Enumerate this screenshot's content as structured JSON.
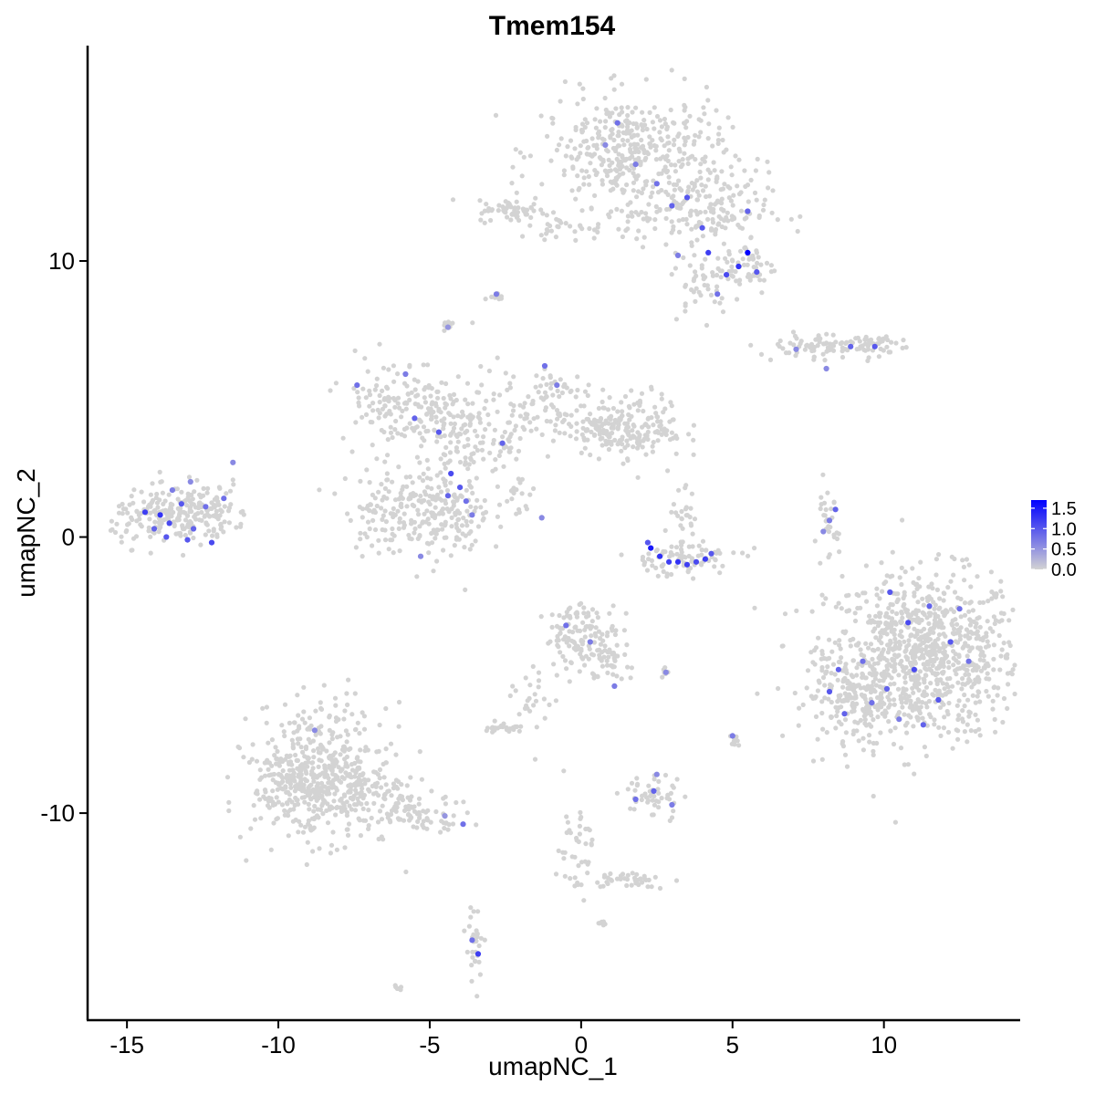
{
  "chart_data": {
    "type": "scatter",
    "title": "Tmem154",
    "xlabel": "umapNC_1",
    "ylabel": "umapNC_2",
    "xlim": [
      -16.3,
      14.5
    ],
    "ylim": [
      -17.5,
      17.8
    ],
    "x_ticks": [
      {
        "value": -15,
        "label": "-15"
      },
      {
        "value": -10,
        "label": "-10"
      },
      {
        "value": -5,
        "label": "-5"
      },
      {
        "value": 0,
        "label": "0"
      },
      {
        "value": 5,
        "label": "5"
      },
      {
        "value": 10,
        "label": "10"
      }
    ],
    "y_ticks": [
      {
        "value": -10,
        "label": "-10"
      },
      {
        "value": 0,
        "label": "0"
      },
      {
        "value": 10,
        "label": "10"
      }
    ],
    "grid": false,
    "legend": {
      "placement": "right",
      "type": "colorbar",
      "min": 0.0,
      "max": 1.7,
      "low_color": "#d3d3d3",
      "high_color": "#0000ff",
      "ticks": [
        {
          "value": 0.0,
          "label": "0.0"
        },
        {
          "value": 0.5,
          "label": "0.5"
        },
        {
          "value": 1.0,
          "label": "1.0"
        },
        {
          "value": 1.5,
          "label": "1.5"
        }
      ]
    },
    "point_color_zero": "#d3d3d3",
    "points": [
      {
        "x": -13.9,
        "y": 0.8,
        "value": 1.3
      },
      {
        "x": -13.6,
        "y": 0.5,
        "value": 1.1
      },
      {
        "x": -13.2,
        "y": 1.2,
        "value": 1.0
      },
      {
        "x": -14.4,
        "y": 0.9,
        "value": 1.2
      },
      {
        "x": -12.8,
        "y": 0.3,
        "value": 0.9
      },
      {
        "x": -13.0,
        "y": -0.1,
        "value": 1.0
      },
      {
        "x": -12.4,
        "y": 1.1,
        "value": 0.8
      },
      {
        "x": -13.5,
        "y": 1.7,
        "value": 0.7
      },
      {
        "x": -12.2,
        "y": -0.2,
        "value": 1.1
      },
      {
        "x": -14.1,
        "y": 0.3,
        "value": 0.9
      },
      {
        "x": -11.8,
        "y": 1.4,
        "value": 0.8
      },
      {
        "x": -12.9,
        "y": 2.0,
        "value": 0.6
      },
      {
        "x": -13.7,
        "y": 0.0,
        "value": 1.0
      },
      {
        "x": -11.5,
        "y": 2.7,
        "value": 0.6
      },
      {
        "x": 2.3,
        "y": -0.4,
        "value": 1.5
      },
      {
        "x": 2.6,
        "y": -0.7,
        "value": 1.3
      },
      {
        "x": 2.9,
        "y": -0.9,
        "value": 1.2
      },
      {
        "x": 3.2,
        "y": -0.9,
        "value": 1.3
      },
      {
        "x": 3.5,
        "y": -1.0,
        "value": 1.2
      },
      {
        "x": 3.8,
        "y": -0.9,
        "value": 1.1
      },
      {
        "x": 4.1,
        "y": -0.8,
        "value": 1.2
      },
      {
        "x": 4.3,
        "y": -0.6,
        "value": 1.0
      },
      {
        "x": 2.2,
        "y": -0.2,
        "value": 1.0
      },
      {
        "x": 5.5,
        "y": 10.3,
        "value": 1.7
      },
      {
        "x": 5.2,
        "y": 9.8,
        "value": 1.3
      },
      {
        "x": 5.8,
        "y": 9.6,
        "value": 1.0
      },
      {
        "x": 4.8,
        "y": 9.5,
        "value": 1.1
      },
      {
        "x": 4.2,
        "y": 10.3,
        "value": 1.2
      },
      {
        "x": 4.0,
        "y": 11.2,
        "value": 1.0
      },
      {
        "x": 5.5,
        "y": 11.8,
        "value": 0.9
      },
      {
        "x": 3.0,
        "y": 12.0,
        "value": 0.9
      },
      {
        "x": 2.5,
        "y": 12.8,
        "value": 0.8
      },
      {
        "x": 1.8,
        "y": 13.5,
        "value": 0.7
      },
      {
        "x": 1.2,
        "y": 15.0,
        "value": 0.8
      },
      {
        "x": 3.5,
        "y": 12.3,
        "value": 1.0
      },
      {
        "x": 4.5,
        "y": 8.8,
        "value": 0.8
      },
      {
        "x": 3.2,
        "y": 10.2,
        "value": 0.7
      },
      {
        "x": 0.8,
        "y": 14.2,
        "value": 0.6
      },
      {
        "x": -2.8,
        "y": 8.8,
        "value": 0.7
      },
      {
        "x": -4.4,
        "y": 7.6,
        "value": 0.5
      },
      {
        "x": -7.4,
        "y": 5.5,
        "value": 0.8
      },
      {
        "x": -5.8,
        "y": 5.9,
        "value": 0.7
      },
      {
        "x": -5.5,
        "y": 4.3,
        "value": 0.9
      },
      {
        "x": -4.7,
        "y": 3.8,
        "value": 1.0
      },
      {
        "x": -4.3,
        "y": 2.3,
        "value": 1.1
      },
      {
        "x": -4.0,
        "y": 1.8,
        "value": 1.0
      },
      {
        "x": -4.4,
        "y": 1.5,
        "value": 0.9
      },
      {
        "x": -3.8,
        "y": 1.3,
        "value": 0.8
      },
      {
        "x": -3.6,
        "y": 0.8,
        "value": 0.7
      },
      {
        "x": -2.6,
        "y": 3.4,
        "value": 0.9
      },
      {
        "x": -1.2,
        "y": 6.2,
        "value": 0.8
      },
      {
        "x": -0.8,
        "y": 5.5,
        "value": 0.7
      },
      {
        "x": -1.3,
        "y": 0.7,
        "value": 0.6
      },
      {
        "x": -5.3,
        "y": -0.7,
        "value": 0.6
      },
      {
        "x": 8.4,
        "y": 1.0,
        "value": 0.9
      },
      {
        "x": 8.2,
        "y": 0.6,
        "value": 0.7
      },
      {
        "x": 8.0,
        "y": 0.2,
        "value": 0.6
      },
      {
        "x": 8.9,
        "y": 6.9,
        "value": 0.9
      },
      {
        "x": 9.7,
        "y": 6.9,
        "value": 1.0
      },
      {
        "x": 8.1,
        "y": 6.1,
        "value": 0.6
      },
      {
        "x": 7.1,
        "y": 6.8,
        "value": 0.6
      },
      {
        "x": 10.2,
        "y": -2.0,
        "value": 1.0
      },
      {
        "x": 10.8,
        "y": -3.1,
        "value": 1.1
      },
      {
        "x": 11.5,
        "y": -2.5,
        "value": 0.9
      },
      {
        "x": 12.2,
        "y": -3.8,
        "value": 1.0
      },
      {
        "x": 11.0,
        "y": -4.8,
        "value": 1.1
      },
      {
        "x": 10.1,
        "y": -5.5,
        "value": 0.9
      },
      {
        "x": 9.3,
        "y": -4.5,
        "value": 0.8
      },
      {
        "x": 8.5,
        "y": -4.8,
        "value": 0.9
      },
      {
        "x": 8.2,
        "y": -5.6,
        "value": 1.0
      },
      {
        "x": 8.7,
        "y": -6.4,
        "value": 0.9
      },
      {
        "x": 9.6,
        "y": -6.0,
        "value": 0.8
      },
      {
        "x": 11.8,
        "y": -5.9,
        "value": 1.0
      },
      {
        "x": 12.5,
        "y": -2.6,
        "value": 0.8
      },
      {
        "x": 10.5,
        "y": -6.6,
        "value": 0.7
      },
      {
        "x": 12.8,
        "y": -4.5,
        "value": 0.8
      },
      {
        "x": 11.3,
        "y": -6.8,
        "value": 0.9
      },
      {
        "x": -0.5,
        "y": -3.2,
        "value": 0.8
      },
      {
        "x": 0.3,
        "y": -3.8,
        "value": 0.7
      },
      {
        "x": 1.1,
        "y": -5.4,
        "value": 0.7
      },
      {
        "x": 2.8,
        "y": -4.9,
        "value": 0.6
      },
      {
        "x": 5.0,
        "y": -7.2,
        "value": 0.7
      },
      {
        "x": 1.8,
        "y": -9.5,
        "value": 0.8
      },
      {
        "x": 2.4,
        "y": -9.2,
        "value": 0.9
      },
      {
        "x": 3.0,
        "y": -9.7,
        "value": 0.7
      },
      {
        "x": 2.5,
        "y": -8.6,
        "value": 0.6
      },
      {
        "x": -3.4,
        "y": -15.1,
        "value": 1.2
      },
      {
        "x": -3.6,
        "y": -14.6,
        "value": 0.8
      },
      {
        "x": -3.9,
        "y": -10.4,
        "value": 0.8
      },
      {
        "x": -8.8,
        "y": -7.0,
        "value": 0.6
      },
      {
        "x": -4.5,
        "y": -10.1,
        "value": 0.5
      }
    ]
  }
}
